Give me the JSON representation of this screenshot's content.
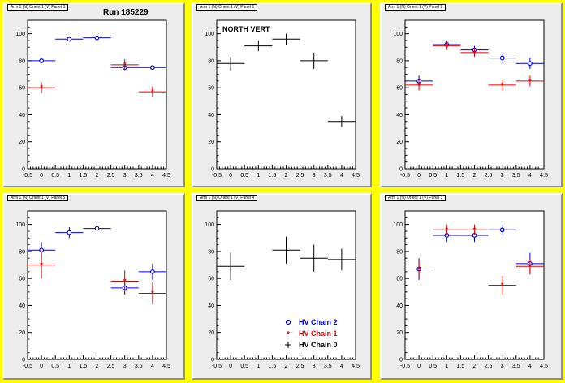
{
  "run_label": "Run 185229",
  "colors": {
    "chain0": "#000000",
    "chain1": "#dd0000",
    "chain2": "#0000dd",
    "frame": "#ececec",
    "background": "#ffff00"
  },
  "legend": [
    {
      "label": "HV Chain 2",
      "color": "#0000dd",
      "marker": "open-circle"
    },
    {
      "label": "HV Chain 1",
      "color": "#dd0000",
      "marker": "star"
    },
    {
      "label": "HV Chain 0",
      "color": "#000000",
      "marker": "cross"
    }
  ],
  "chart_data": [
    {
      "type": "scatter",
      "title": "Arm 1 (N) Orient 1 (V) Panel 0",
      "annotation": "Run 185229",
      "xlim": [
        -0.5,
        4.5
      ],
      "ylim": [
        0,
        110
      ],
      "xticks": [
        "-0.5",
        "0",
        "0.5",
        "1",
        "1.5",
        "2",
        "2.5",
        "3",
        "3.5",
        "4",
        "4.5"
      ],
      "yticks": [
        "0",
        "20",
        "40",
        "60",
        "80",
        "100"
      ],
      "series": [
        {
          "chain": 2,
          "points": [
            {
              "x": 0,
              "y": 80,
              "err": 2
            },
            {
              "x": 1,
              "y": 96,
              "err": 1
            },
            {
              "x": 2,
              "y": 97,
              "err": 1
            },
            {
              "x": 3,
              "y": 75,
              "err": 2
            },
            {
              "x": 4,
              "y": 75,
              "err": 1
            }
          ]
        },
        {
          "chain": 1,
          "points": [
            {
              "x": 0,
              "y": 60,
              "err": 4
            },
            {
              "x": 3,
              "y": 77,
              "err": 4
            },
            {
              "x": 4,
              "y": 57,
              "err": 4
            }
          ]
        }
      ]
    },
    {
      "type": "scatter",
      "title": "Arm 1 (N) Orient 1 (V) Panel 1",
      "annotation": "NORTH VERT",
      "xlim": [
        -0.5,
        4.5
      ],
      "ylim": [
        0,
        110
      ],
      "xticks": [
        "-0.5",
        "0",
        "0.5",
        "1",
        "1.5",
        "2",
        "2.5",
        "3",
        "3.5",
        "4",
        "4.5"
      ],
      "yticks": [
        "0",
        "20",
        "40",
        "60",
        "80",
        "100"
      ],
      "series": [
        {
          "chain": 0,
          "points": [
            {
              "x": 0,
              "y": 78,
              "err": 5
            },
            {
              "x": 1,
              "y": 91,
              "err": 4
            },
            {
              "x": 2,
              "y": 96,
              "err": 4
            },
            {
              "x": 3,
              "y": 80,
              "err": 6
            },
            {
              "x": 4,
              "y": 35,
              "err": 4
            }
          ]
        }
      ]
    },
    {
      "type": "scatter",
      "title": "Arm 1 (N) Orient 1 (V) Panel 2",
      "annotation": "",
      "xlim": [
        -0.5,
        4.5
      ],
      "ylim": [
        0,
        110
      ],
      "xticks": [
        "-0.5",
        "0",
        "0.5",
        "1",
        "1.5",
        "2",
        "2.5",
        "3",
        "3.5",
        "4",
        "4.5"
      ],
      "yticks": [
        "0",
        "20",
        "40",
        "60",
        "80",
        "100"
      ],
      "series": [
        {
          "chain": 2,
          "points": [
            {
              "x": 0,
              "y": 65,
              "err": 4
            },
            {
              "x": 1,
              "y": 92,
              "err": 3
            },
            {
              "x": 2,
              "y": 88,
              "err": 3
            },
            {
              "x": 3,
              "y": 82,
              "err": 4
            },
            {
              "x": 4,
              "y": 78,
              "err": 4
            }
          ]
        },
        {
          "chain": 1,
          "points": [
            {
              "x": 0,
              "y": 62,
              "err": 4
            },
            {
              "x": 1,
              "y": 91,
              "err": 3
            },
            {
              "x": 2,
              "y": 86,
              "err": 3
            },
            {
              "x": 3,
              "y": 62,
              "err": 4
            },
            {
              "x": 4,
              "y": 65,
              "err": 4
            }
          ]
        }
      ]
    },
    {
      "type": "scatter",
      "title": "Arm 1 (N) Orient 1 (V) Panel 5",
      "annotation": "",
      "xlim": [
        -0.5,
        4.5
      ],
      "ylim": [
        0,
        110
      ],
      "xticks": [
        "-0.5",
        "0",
        "0.5",
        "1",
        "1.5",
        "2",
        "2.5",
        "3",
        "3.5",
        "4",
        "4.5"
      ],
      "yticks": [
        "0",
        "20",
        "40",
        "60",
        "80",
        "100"
      ],
      "series": [
        {
          "chain": 2,
          "points": [
            {
              "x": 0,
              "y": 81,
              "err": 6
            },
            {
              "x": 1,
              "y": 94,
              "err": 4
            },
            {
              "x": 2,
              "y": 97,
              "err": 3
            },
            {
              "x": 3,
              "y": 53,
              "err": 5
            },
            {
              "x": 4,
              "y": 65,
              "err": 6
            }
          ]
        },
        {
          "chain": 1,
          "points": [
            {
              "x": 0,
              "y": 70,
              "err": 10
            },
            {
              "x": 3,
              "y": 58,
              "err": 8
            },
            {
              "x": 4,
              "y": 49,
              "err": 8
            }
          ]
        }
      ]
    },
    {
      "type": "scatter",
      "title": "Arm 1 (N) Orient 1 (V) Panel 4",
      "annotation": "",
      "xlim": [
        -0.5,
        4.5
      ],
      "ylim": [
        0,
        110
      ],
      "xticks": [
        "-0.5",
        "0",
        "0.5",
        "1",
        "1.5",
        "2",
        "2.5",
        "3",
        "3.5",
        "4",
        "4.5"
      ],
      "yticks": [
        "0",
        "20",
        "40",
        "60",
        "80",
        "100"
      ],
      "series": [
        {
          "chain": 0,
          "points": [
            {
              "x": 0,
              "y": 69,
              "err": 10
            },
            {
              "x": 2,
              "y": 81,
              "err": 10
            },
            {
              "x": 3,
              "y": 75,
              "err": 10
            },
            {
              "x": 4,
              "y": 74,
              "err": 8
            }
          ]
        }
      ]
    },
    {
      "type": "scatter",
      "title": "Arm 1 (N) Orient 1 (V) Panel 3",
      "annotation": "",
      "xlim": [
        -0.5,
        4.5
      ],
      "ylim": [
        0,
        110
      ],
      "xticks": [
        "-0.5",
        "0",
        "0.5",
        "1",
        "1.5",
        "2",
        "2.5",
        "3",
        "3.5",
        "4",
        "4.5"
      ],
      "yticks": [
        "0",
        "20",
        "40",
        "60",
        "80",
        "100"
      ],
      "series": [
        {
          "chain": 2,
          "points": [
            {
              "x": 0,
              "y": 67,
              "err": 8
            },
            {
              "x": 1,
              "y": 92,
              "err": 5
            },
            {
              "x": 2,
              "y": 92,
              "err": 5
            },
            {
              "x": 3,
              "y": 96,
              "err": 4
            },
            {
              "x": 4,
              "y": 71,
              "err": 8
            }
          ]
        },
        {
          "chain": 1,
          "points": [
            {
              "x": 0,
              "y": 67,
              "err": 6
            },
            {
              "x": 1,
              "y": 96,
              "err": 4
            },
            {
              "x": 2,
              "y": 96,
              "err": 4
            },
            {
              "x": 3,
              "y": 55,
              "err": 7
            },
            {
              "x": 4,
              "y": 69,
              "err": 6
            }
          ]
        }
      ]
    }
  ]
}
